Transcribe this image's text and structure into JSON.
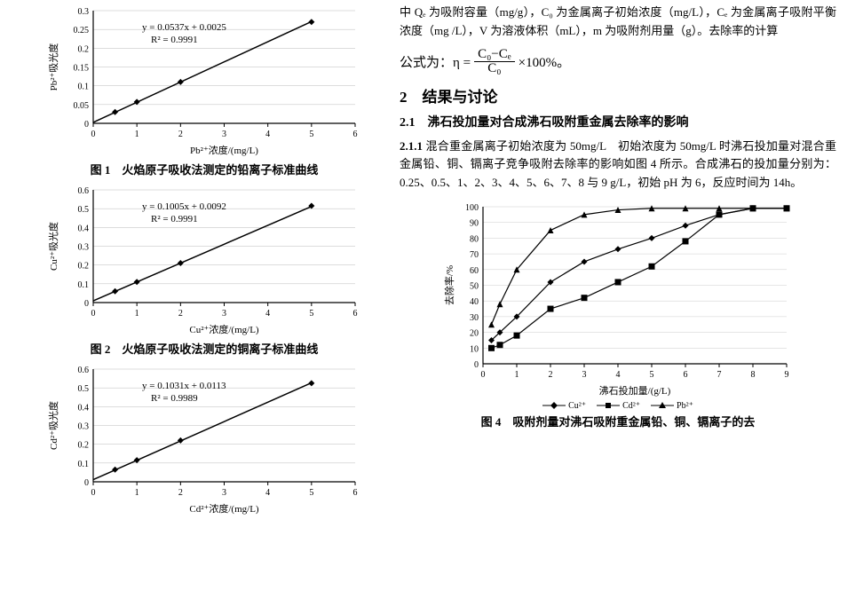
{
  "chart1": {
    "type": "scatter-line",
    "equation": "y = 0.0537x + 0.0025",
    "r2": "R² = 0.9991",
    "xlabel": "Pb²⁺浓度/(mg/L)",
    "ylabel": "Pb²⁺吸光度",
    "xlim": [
      0,
      6
    ],
    "xtick_step": 1,
    "ylim": [
      0,
      0.3
    ],
    "ytick_step": 0.05,
    "points": [
      [
        0.5,
        0.03
      ],
      [
        1,
        0.057
      ],
      [
        2,
        0.11
      ],
      [
        5,
        0.27
      ]
    ],
    "marker": "diamond",
    "color": "#000000",
    "caption": "图 1　火焰原子吸收法测定的铅离子标准曲线"
  },
  "chart2": {
    "type": "scatter-line",
    "equation": "y = 0.1005x + 0.0092",
    "r2": "R² = 0.9991",
    "xlabel": "Cu²⁺浓度/(mg/L)",
    "ylabel": "Cu²⁺吸光度",
    "xlim": [
      0,
      6
    ],
    "xtick_step": 1,
    "ylim": [
      0,
      0.6
    ],
    "ytick_step": 0.1,
    "points": [
      [
        0.5,
        0.06
      ],
      [
        1,
        0.11
      ],
      [
        2,
        0.21
      ],
      [
        5,
        0.515
      ]
    ],
    "marker": "diamond",
    "color": "#000000",
    "caption": "图 2　火焰原子吸收法测定的铜离子标准曲线"
  },
  "chart3": {
    "type": "scatter-line",
    "equation": "y = 0.1031x + 0.0113",
    "r2": "R² = 0.9989",
    "xlabel": "Cd²⁺浓度/(mg/L)",
    "ylabel": "Cd²⁺吸光度",
    "xlim": [
      0,
      6
    ],
    "xtick_step": 1,
    "ylim": [
      0,
      0.6
    ],
    "ytick_step": 0.1,
    "points": [
      [
        0.5,
        0.065
      ],
      [
        1,
        0.115
      ],
      [
        2,
        0.22
      ],
      [
        5,
        0.525
      ]
    ],
    "marker": "diamond",
    "color": "#000000",
    "caption": ""
  },
  "chart4": {
    "type": "line",
    "xlabel": "沸石投加量/(g/L)",
    "ylabel": "去除率/%",
    "xlim": [
      0,
      9
    ],
    "xtick_step": 1,
    "ylim": [
      0,
      100
    ],
    "ytick_step": 10,
    "series": [
      {
        "name": "Cu²⁺",
        "marker": "diamond",
        "color": "#000000",
        "points": [
          [
            0.25,
            15
          ],
          [
            0.5,
            20
          ],
          [
            1,
            30
          ],
          [
            2,
            52
          ],
          [
            3,
            65
          ],
          [
            4,
            73
          ],
          [
            5,
            80
          ],
          [
            6,
            88
          ],
          [
            7,
            95
          ],
          [
            8,
            99
          ],
          [
            9,
            99
          ]
        ]
      },
      {
        "name": "Cd²⁺",
        "marker": "square",
        "color": "#000000",
        "points": [
          [
            0.25,
            10
          ],
          [
            0.5,
            12
          ],
          [
            1,
            18
          ],
          [
            2,
            35
          ],
          [
            3,
            42
          ],
          [
            4,
            52
          ],
          [
            5,
            62
          ],
          [
            6,
            78
          ],
          [
            7,
            95
          ],
          [
            8,
            99
          ],
          [
            9,
            99
          ]
        ]
      },
      {
        "name": "Pb²⁺",
        "marker": "triangle",
        "color": "#000000",
        "points": [
          [
            0.25,
            25
          ],
          [
            0.5,
            38
          ],
          [
            1,
            60
          ],
          [
            2,
            85
          ],
          [
            3,
            95
          ],
          [
            4,
            98
          ],
          [
            5,
            99
          ],
          [
            6,
            99
          ],
          [
            7,
            99
          ],
          [
            8,
            99
          ],
          [
            9,
            99
          ]
        ]
      }
    ],
    "caption": "图 4　吸附剂量对沸石吸附重金属铅、铜、镉离子的去"
  },
  "text": {
    "para1": "中 Qₑ 为吸附容量（mg/g），C₀ 为金属离子初始浓度（mg/L），Cₑ 为金属离子吸附平衡浓度（mg /L），V 为溶液体积（mL），m 为吸附剂用量（g）。去除率的计算",
    "formula_prefix": "公式为：η =",
    "formula_num": "C₀−Cₑ",
    "formula_den": "C₀",
    "formula_suffix": "×100%。",
    "sec2": "2　结果与讨论",
    "sec21": "2.1　沸石投加量对合成沸石吸附重金属去除率的影响",
    "sec211_head": "2.1.1",
    "sec211_title": "混合重金属离子初始浓度为 50mg/L",
    "sec211_body": "初始浓度为 50mg/L 时沸石投加量对混合重金属铅、铜、镉离子竞争吸附去除率的影响如图 4 所示。合成沸石的投加量分别为：0.25、0.5、1、2、3、4、5、6、7、8 与 9 g/L，初始 pH 为 6，反应时间为 14h。"
  }
}
